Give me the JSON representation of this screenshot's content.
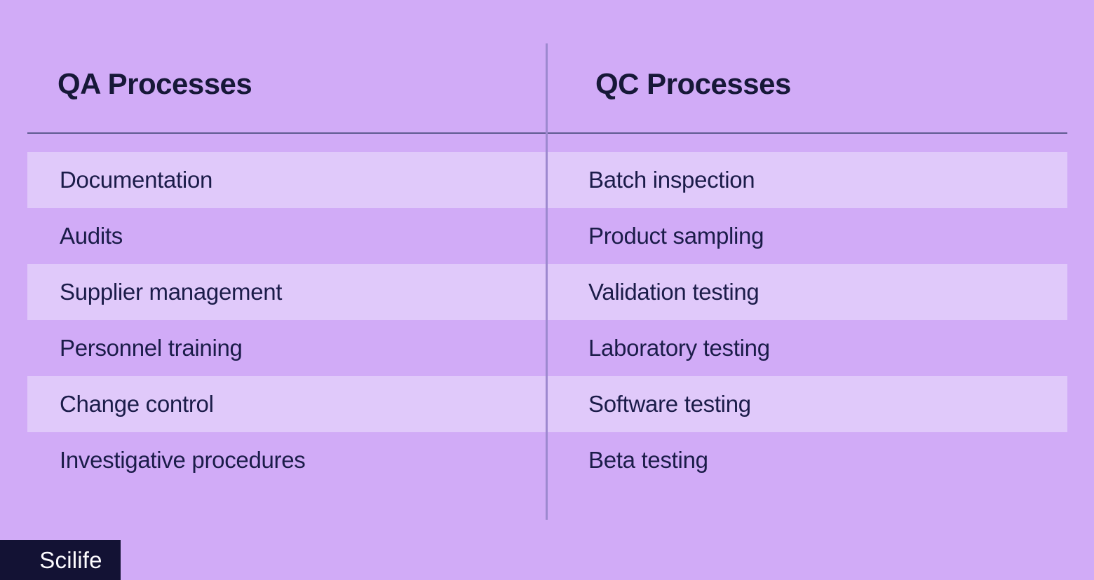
{
  "table": {
    "columns": [
      {
        "header": "QA Processes",
        "items": [
          "Documentation",
          "Audits",
          "Supplier management",
          "Personnel training",
          "Change control",
          "Investigative procedures"
        ]
      },
      {
        "header": "QC Processes",
        "items": [
          "Batch inspection",
          "Product sampling",
          "Validation testing",
          "Laboratory testing",
          "Software testing",
          "Beta testing"
        ]
      }
    ]
  },
  "brand": {
    "logo_text": "Scilife"
  },
  "colors": {
    "background": "#d1abf7",
    "row_highlight": "#e0c9fa",
    "text": "#1b1c49",
    "header_text": "#171838",
    "horizontal_rule": "#5f5a91",
    "vertical_divider": "#9d89cf",
    "logo_background": "#131234",
    "logo_text": "#fdfcff"
  }
}
